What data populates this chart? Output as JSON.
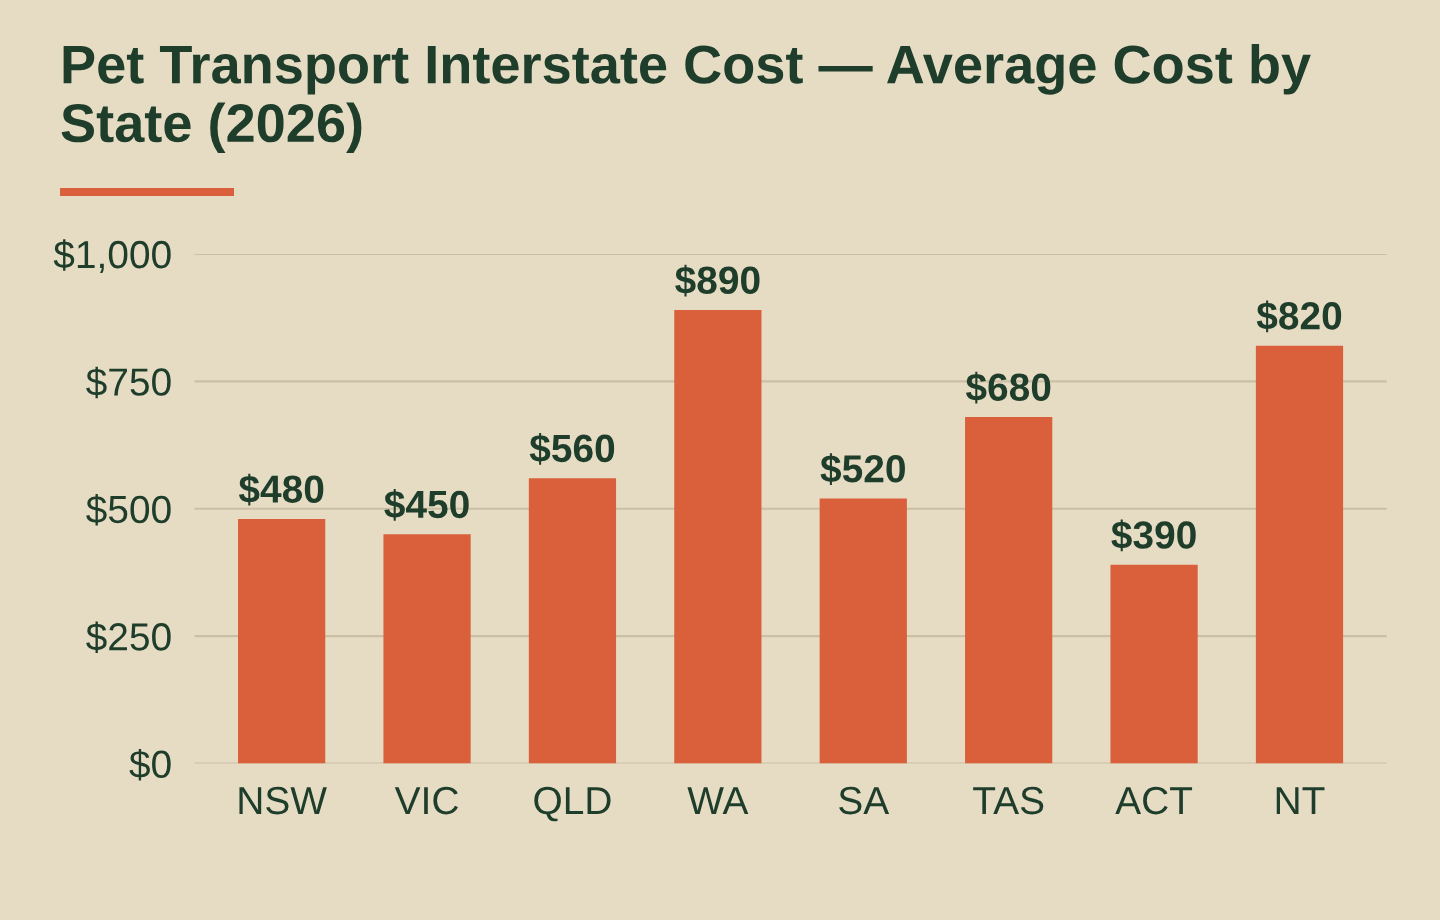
{
  "chart_data": {
    "type": "bar",
    "title": "Pet Transport Interstate Cost — Average Cost by State (2026)",
    "categories": [
      "NSW",
      "VIC",
      "QLD",
      "WA",
      "SA",
      "TAS",
      "ACT",
      "NT"
    ],
    "values": [
      480,
      450,
      560,
      890,
      520,
      680,
      390,
      820
    ],
    "value_labels": [
      "$480",
      "$450",
      "$560",
      "$890",
      "$520",
      "$680",
      "$390",
      "$820"
    ],
    "color": "#d9603b",
    "ylim": [
      0,
      1000
    ],
    "yticks": [
      {
        "value": 0,
        "label": "$0"
      },
      {
        "value": 250,
        "label": "$250"
      },
      {
        "value": 500,
        "label": "$500"
      },
      {
        "value": 750,
        "label": "$750"
      },
      {
        "value": 1000,
        "label": "$1,000"
      }
    ],
    "grid": "y",
    "legend": false
  }
}
